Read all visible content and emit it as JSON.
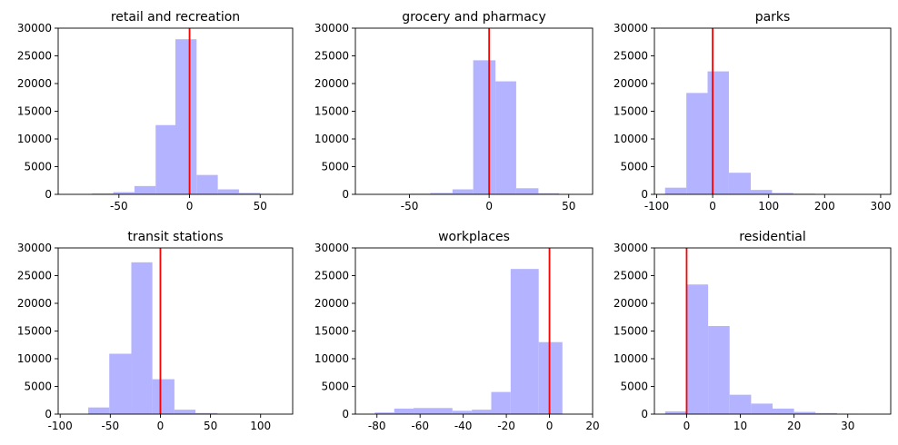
{
  "chart_data": [
    {
      "type": "bar",
      "title": "retail and recreation",
      "xlim": [
        -93,
        73
      ],
      "ylim": [
        0,
        30000
      ],
      "xticks": [
        -50,
        0,
        50
      ],
      "yticks": [
        0,
        5000,
        10000,
        15000,
        20000,
        25000,
        30000
      ],
      "bins": [
        {
          "x0": -84,
          "x1": -69,
          "count": 50
        },
        {
          "x0": -69,
          "x1": -54,
          "count": 150
        },
        {
          "x0": -54,
          "x1": -39,
          "count": 400
        },
        {
          "x0": -39,
          "x1": -24,
          "count": 1500
        },
        {
          "x0": -24,
          "x1": -10,
          "count": 12500
        },
        {
          "x0": -10,
          "x1": 5,
          "count": 28000
        },
        {
          "x0": 5,
          "x1": 20,
          "count": 3500
        },
        {
          "x0": 20,
          "x1": 35,
          "count": 900
        },
        {
          "x0": 35,
          "x1": 50,
          "count": 250
        },
        {
          "x0": 50,
          "x1": 64,
          "count": 80
        }
      ],
      "reference_line_x": 0
    },
    {
      "type": "bar",
      "title": "grocery and pharmacy",
      "xlim": [
        -84,
        65
      ],
      "ylim": [
        0,
        30000
      ],
      "xticks": [
        -50,
        0,
        50
      ],
      "yticks": [
        0,
        5000,
        10000,
        15000,
        20000,
        25000,
        30000
      ],
      "bins": [
        {
          "x0": -77,
          "x1": -63,
          "count": 30
        },
        {
          "x0": -63,
          "x1": -50,
          "count": 60
        },
        {
          "x0": -50,
          "x1": -37,
          "count": 120
        },
        {
          "x0": -37,
          "x1": -23,
          "count": 250
        },
        {
          "x0": -23,
          "x1": -10,
          "count": 900
        },
        {
          "x0": -10,
          "x1": 4,
          "count": 24200
        },
        {
          "x0": 4,
          "x1": 17,
          "count": 20400
        },
        {
          "x0": 17,
          "x1": 31,
          "count": 1100
        },
        {
          "x0": 31,
          "x1": 44,
          "count": 200
        },
        {
          "x0": 44,
          "x1": 58,
          "count": 50
        }
      ],
      "reference_line_x": 0
    },
    {
      "type": "bar",
      "title": "parks",
      "xlim": [
        -104,
        318
      ],
      "ylim": [
        0,
        30000
      ],
      "xticks": [
        -100,
        0,
        100,
        200,
        300
      ],
      "yticks": [
        0,
        5000,
        10000,
        15000,
        20000,
        25000,
        30000
      ],
      "bins": [
        {
          "x0": -85,
          "x1": -47,
          "count": 1200
        },
        {
          "x0": -47,
          "x1": -9,
          "count": 18300
        },
        {
          "x0": -9,
          "x1": 29,
          "count": 22200
        },
        {
          "x0": 29,
          "x1": 68,
          "count": 3900
        },
        {
          "x0": 68,
          "x1": 106,
          "count": 800
        },
        {
          "x0": 106,
          "x1": 144,
          "count": 250
        },
        {
          "x0": 144,
          "x1": 183,
          "count": 120
        },
        {
          "x0": 183,
          "x1": 221,
          "count": 60
        },
        {
          "x0": 221,
          "x1": 259,
          "count": 30
        },
        {
          "x0": 259,
          "x1": 298,
          "count": 15
        }
      ],
      "reference_line_x": 0
    },
    {
      "type": "bar",
      "title": "transit stations",
      "xlim": [
        -102,
        132
      ],
      "ylim": [
        0,
        30000
      ],
      "xticks": [
        -100,
        -50,
        0,
        50,
        100
      ],
      "yticks": [
        0,
        5000,
        10000,
        15000,
        20000,
        25000,
        30000
      ],
      "bins": [
        {
          "x0": -72,
          "x1": -51,
          "count": 1200
        },
        {
          "x0": -51,
          "x1": -29,
          "count": 10900
        },
        {
          "x0": -29,
          "x1": -8,
          "count": 27400
        },
        {
          "x0": -8,
          "x1": 14,
          "count": 6300
        },
        {
          "x0": 14,
          "x1": 35,
          "count": 800
        },
        {
          "x0": 35,
          "x1": 57,
          "count": 200
        },
        {
          "x0": 57,
          "x1": 78,
          "count": 80
        },
        {
          "x0": 78,
          "x1": 100,
          "count": 40
        },
        {
          "x0": 100,
          "x1": 121,
          "count": 20
        }
      ],
      "reference_line_x": 0
    },
    {
      "type": "bar",
      "title": "workplaces",
      "xlim": [
        -90,
        20
      ],
      "ylim": [
        0,
        30000
      ],
      "xticks": [
        -80,
        -60,
        -40,
        -20,
        0,
        20
      ],
      "yticks": [
        0,
        5000,
        10000,
        15000,
        20000,
        25000,
        30000
      ],
      "bins": [
        {
          "x0": -81,
          "x1": -72,
          "count": 300
        },
        {
          "x0": -72,
          "x1": -63,
          "count": 1000
        },
        {
          "x0": -63,
          "x1": -45,
          "count": 1100
        },
        {
          "x0": -45,
          "x1": -36,
          "count": 600
        },
        {
          "x0": -36,
          "x1": -27,
          "count": 800
        },
        {
          "x0": -27,
          "x1": -18,
          "count": 4000
        },
        {
          "x0": -18,
          "x1": -5,
          "count": 26200
        },
        {
          "x0": -5,
          "x1": 6,
          "count": 13000
        }
      ],
      "reference_line_x": 0
    },
    {
      "type": "bar",
      "title": "residential",
      "xlim": [
        -6,
        38
      ],
      "ylim": [
        0,
        30000
      ],
      "xticks": [
        0,
        10,
        20,
        30
      ],
      "yticks": [
        0,
        5000,
        10000,
        15000,
        20000,
        25000,
        30000
      ],
      "bins": [
        {
          "x0": -4,
          "x1": 0,
          "count": 500
        },
        {
          "x0": 0,
          "x1": 4,
          "count": 23400
        },
        {
          "x0": 4,
          "x1": 8,
          "count": 15900
        },
        {
          "x0": 8,
          "x1": 12,
          "count": 3500
        },
        {
          "x0": 12,
          "x1": 16,
          "count": 1900
        },
        {
          "x0": 16,
          "x1": 20,
          "count": 1000
        },
        {
          "x0": 20,
          "x1": 24,
          "count": 400
        },
        {
          "x0": 24,
          "x1": 28,
          "count": 200
        },
        {
          "x0": 28,
          "x1": 32,
          "count": 60
        },
        {
          "x0": 32,
          "x1": 36,
          "count": 20
        }
      ],
      "reference_line_x": 0
    }
  ],
  "colors": {
    "bar": "#b3b3ff",
    "reference_line": "#ff0000",
    "axis": "#000000"
  }
}
